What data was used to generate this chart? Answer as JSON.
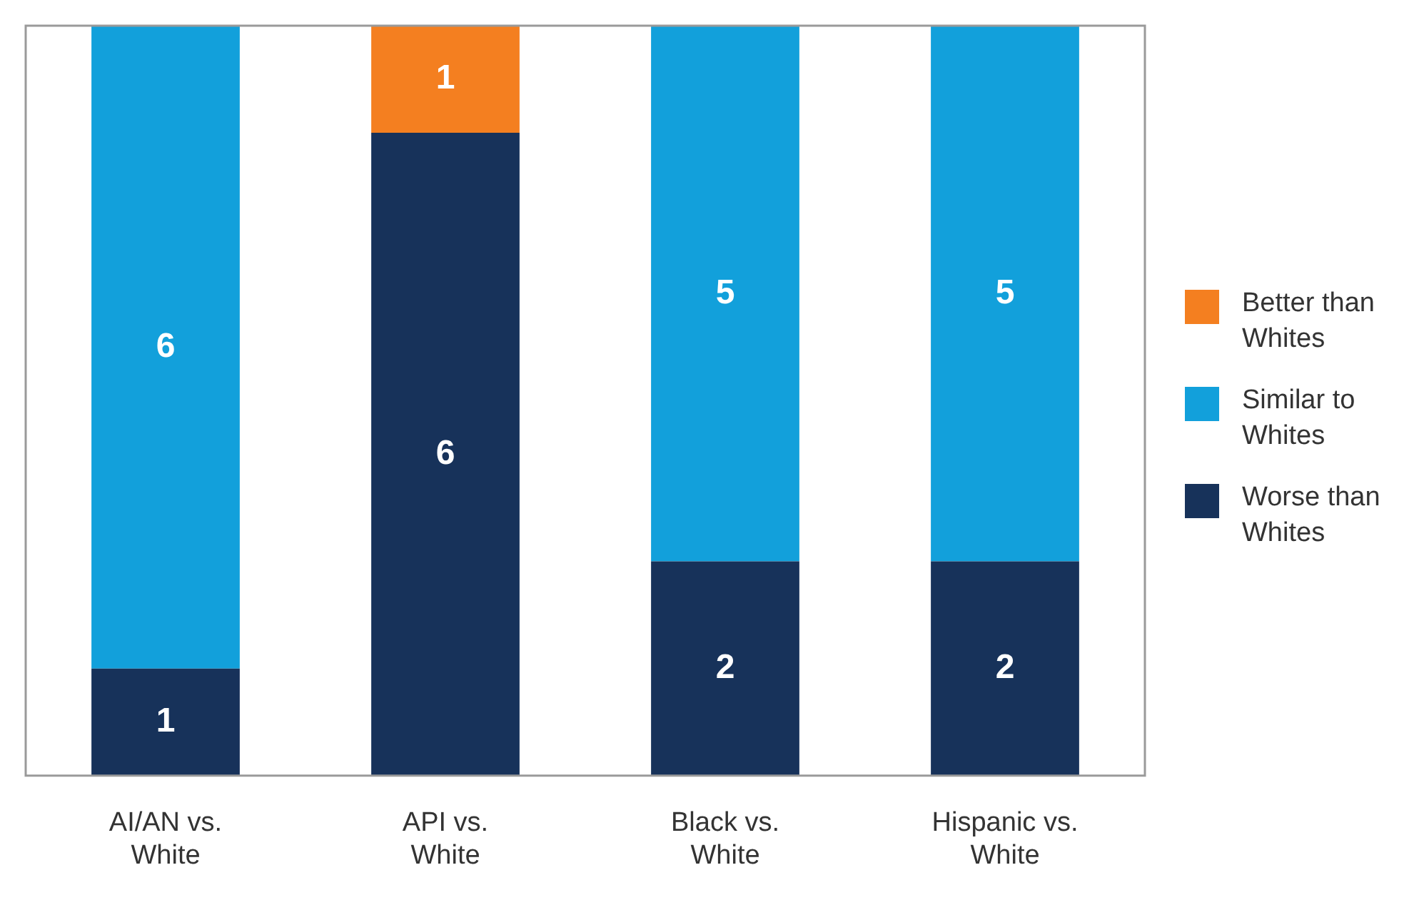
{
  "chart_data": {
    "type": "bar",
    "stacked": true,
    "categories": [
      "AI/AN vs. White",
      "API vs. White",
      "Black vs. White",
      "Hispanic vs. White"
    ],
    "series": [
      {
        "name": "Worse than Whites",
        "color": "#17325a",
        "values": [
          1,
          6,
          2,
          2
        ]
      },
      {
        "name": "Similar to Whites",
        "color": "#12a0db",
        "values": [
          6,
          null,
          5,
          5
        ]
      },
      {
        "name": "Better than Whites",
        "color": "#f47f20",
        "values": [
          null,
          1,
          null,
          null
        ]
      }
    ],
    "ylim": [
      0,
      7
    ],
    "tick_labels": "x",
    "grid": false,
    "legend": "right",
    "data_labels": true
  }
}
